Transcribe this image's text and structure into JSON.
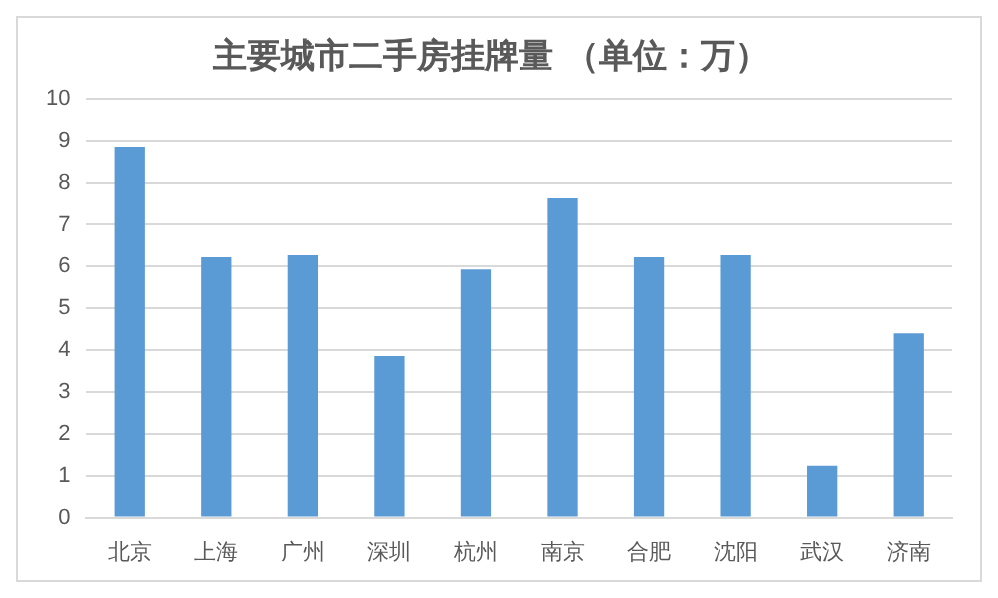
{
  "chart_data": {
    "type": "bar",
    "title": "主要城市二手房挂牌量 （单位：万）",
    "categories": [
      "北京",
      "上海",
      "广州",
      "深圳",
      "杭州",
      "南京",
      "合肥",
      "沈阳",
      "武汉",
      "济南"
    ],
    "values": [
      8.85,
      6.22,
      6.27,
      3.86,
      5.93,
      7.63,
      6.22,
      6.27,
      1.24,
      4.4
    ],
    "color": "#5b9bd5",
    "ylim": [
      0,
      10
    ],
    "yticks": [
      0,
      1,
      2,
      3,
      4,
      5,
      6,
      7,
      8,
      9,
      10
    ],
    "grid": "y",
    "legend": false
  }
}
